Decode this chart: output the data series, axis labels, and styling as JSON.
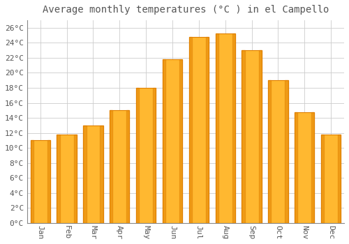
{
  "title": "Average monthly temperatures (°C ) in el Campello",
  "months": [
    "Jan",
    "Feb",
    "Mar",
    "Apr",
    "May",
    "Jun",
    "Jul",
    "Aug",
    "Sep",
    "Oct",
    "Nov",
    "Dec"
  ],
  "values": [
    11.0,
    11.8,
    13.0,
    15.0,
    18.0,
    21.8,
    24.8,
    25.2,
    23.0,
    19.0,
    14.8,
    11.8
  ],
  "bar_color": "#FFA500",
  "bar_face_color": "#FFB830",
  "bar_edge_color": "#E08000",
  "background_color": "#FFFFFF",
  "grid_color": "#CCCCCC",
  "text_color": "#555555",
  "ylim": [
    0,
    27
  ],
  "ytick_step": 2,
  "title_fontsize": 10,
  "tick_fontsize": 8,
  "font_family": "monospace"
}
